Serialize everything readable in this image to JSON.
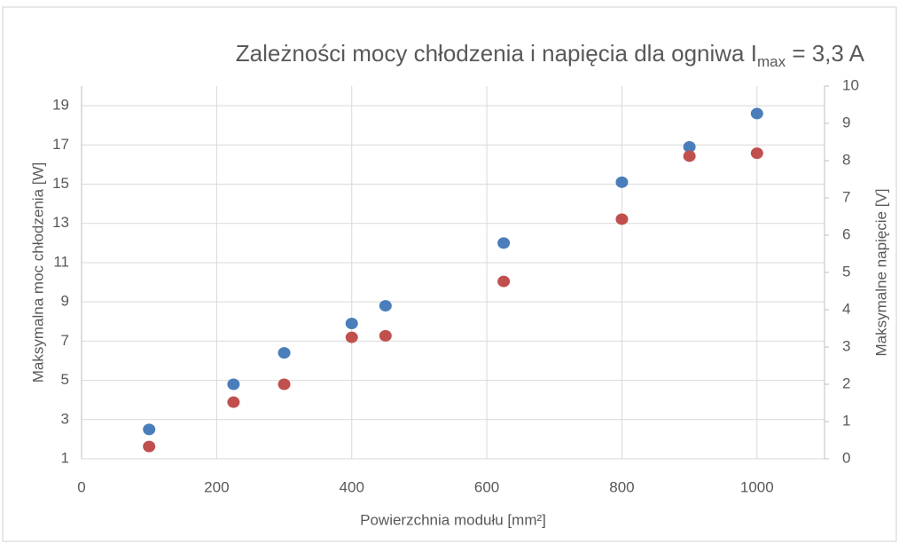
{
  "chart_data": {
    "type": "scatter",
    "title": {
      "text": "Zależności mocy chłodzenia  i napięcia dla ogniwa I",
      "subscript": "max",
      "suffix": " = 3,3 A"
    },
    "x_label": "Powierzchnia modułu [mm²]",
    "y_label": "Maksymalna moc chłodzenia [W]",
    "y2_label": "Maksymalne napięcie [V]",
    "xlim": [
      0,
      1100
    ],
    "xticks": [
      0,
      200,
      400,
      600,
      800,
      1000
    ],
    "ylim": [
      1,
      20
    ],
    "yticks": [
      1,
      3,
      5,
      7,
      9,
      11,
      13,
      15,
      17,
      19
    ],
    "y2lim": [
      0,
      10
    ],
    "y2ticks": [
      0,
      1,
      2,
      3,
      4,
      5,
      6,
      7,
      8,
      9,
      10
    ],
    "grid": true,
    "series": [
      {
        "color": "#4a7ebb",
        "x": [
          100,
          225,
          300,
          400,
          450,
          625,
          800,
          900,
          1000
        ],
        "values": [
          2.5,
          4.8,
          6.4,
          7.9,
          8.8,
          12.0,
          15.1,
          16.9,
          18.6
        ]
      },
      {
        "color": "#c0504d",
        "axis": "y2",
        "x": [
          100,
          225,
          300,
          400,
          450,
          625,
          800,
          900,
          1000
        ],
        "values": [
          0.33,
          1.52,
          2.0,
          3.26,
          3.3,
          4.76,
          6.43,
          8.12,
          8.2
        ]
      }
    ]
  }
}
